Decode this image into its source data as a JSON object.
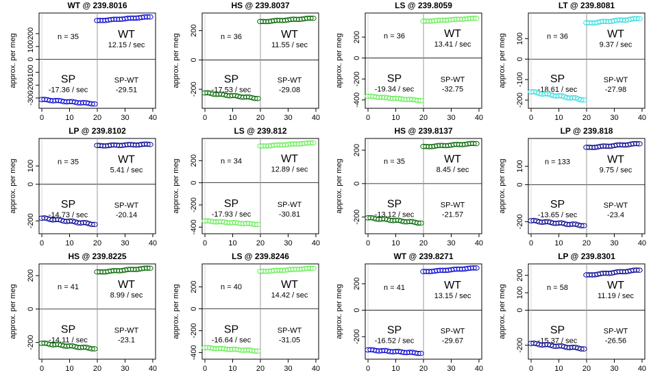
{
  "y_axis_label": "approx. per meg",
  "quadrant_label_wt": "WT",
  "quadrant_label_sp": "SP",
  "quadrant_label_spwt": "SP-WT",
  "colors": {
    "WT": "#0000cc",
    "HS": "#006400",
    "LS": "#66ee55",
    "LT": "#33dddd",
    "LP": "#00008b"
  },
  "chart_data": [
    {
      "type": "scatter",
      "title": "WT @ 239.8016",
      "ref": "WT",
      "color": "#0000cc",
      "n_label": "n = 35",
      "wt_rate": "12.15 / sec",
      "sp_rate": "-17.36 / sec",
      "spwt_diff": "-29.51",
      "ylim": [
        -380,
        360
      ],
      "yticks": [
        -300,
        -200,
        -100,
        0,
        100,
        200
      ],
      "xlim": [
        -1,
        41
      ],
      "xticks": [
        0,
        10,
        20,
        30,
        40
      ],
      "grid": false,
      "sp_start": -312,
      "sp_end": -345,
      "wt_start": 300,
      "wt_end": 330
    },
    {
      "type": "scatter",
      "title": "HS @ 239.8037",
      "ref": "HS",
      "color": "#006400",
      "n_label": "n = 36",
      "wt_rate": "11.55 / sec",
      "sp_rate": "-17.53 / sec",
      "spwt_diff": "-29.08",
      "ylim": [
        -330,
        320
      ],
      "yticks": [
        -200,
        0,
        200
      ],
      "xlim": [
        -1,
        41
      ],
      "xticks": [
        0,
        10,
        20,
        30,
        40
      ],
      "grid": false,
      "sp_start": -225,
      "sp_end": -262,
      "wt_start": 260,
      "wt_end": 285
    },
    {
      "type": "scatter",
      "title": "LS @ 239.8059",
      "ref": "LS",
      "color": "#66ee55",
      "n_label": "n = 36",
      "wt_rate": "13.41 / sec",
      "sp_rate": "-19.34 / sec",
      "spwt_diff": "-32.75",
      "ylim": [
        -480,
        430
      ],
      "yticks": [
        -400,
        -200,
        0,
        200
      ],
      "xlim": [
        -1,
        41
      ],
      "xticks": [
        0,
        10,
        20,
        30,
        40
      ],
      "grid": false,
      "sp_start": -365,
      "sp_end": -405,
      "wt_start": 350,
      "wt_end": 380
    },
    {
      "type": "scatter",
      "title": "LT @ 239.8081",
      "ref": "LT",
      "color": "#33dddd",
      "n_label": "n = 36",
      "wt_rate": "9.37 / sec",
      "sp_rate": "-18.61 / sec",
      "spwt_diff": "-27.98",
      "ylim": [
        -240,
        225
      ],
      "yticks": [
        -200,
        -100,
        0,
        100
      ],
      "xlim": [
        -1,
        41
      ],
      "xticks": [
        0,
        10,
        20,
        30,
        40
      ],
      "grid": false,
      "sp_start": -160,
      "sp_end": -198,
      "wt_start": 175,
      "wt_end": 198
    },
    {
      "type": "scatter",
      "title": "LP @ 239.8102",
      "ref": "LP",
      "color": "#00008b",
      "n_label": "n = 35",
      "wt_rate": "5.41 / sec",
      "sp_rate": "-14.73 / sec",
      "spwt_diff": "-20.14",
      "ylim": [
        -270,
        250
      ],
      "yticks": [
        -200,
        0,
        100
      ],
      "xlim": [
        -1,
        41
      ],
      "xticks": [
        0,
        10,
        20,
        30,
        40
      ],
      "grid": false,
      "sp_start": -185,
      "sp_end": -218,
      "wt_start": 210,
      "wt_end": 218
    },
    {
      "type": "scatter",
      "title": "LS @ 239.812",
      "ref": "LS",
      "color": "#66ee55",
      "n_label": "n = 34",
      "wt_rate": "12.89 / sec",
      "sp_rate": "-17.93 / sec",
      "spwt_diff": "-30.81",
      "ylim": [
        -460,
        400
      ],
      "yticks": [
        -400,
        -200,
        0,
        200
      ],
      "xlim": [
        -1,
        41
      ],
      "xticks": [
        0,
        10,
        20,
        30,
        40
      ],
      "grid": false,
      "sp_start": -345,
      "sp_end": -375,
      "wt_start": 330,
      "wt_end": 360
    },
    {
      "type": "scatter",
      "title": "HS @ 239.8137",
      "ref": "HS",
      "color": "#006400",
      "n_label": "n = 35",
      "wt_rate": "8.45 / sec",
      "sp_rate": "-13.12 / sec",
      "spwt_diff": "-21.57",
      "ylim": [
        -300,
        270
      ],
      "yticks": [
        -200,
        0,
        200
      ],
      "xlim": [
        -1,
        41
      ],
      "xticks": [
        0,
        10,
        20,
        30,
        40
      ],
      "grid": false,
      "sp_start": -205,
      "sp_end": -235,
      "wt_start": 220,
      "wt_end": 240
    },
    {
      "type": "scatter",
      "title": "LP @ 239.818",
      "ref": "LP",
      "color": "#00008b",
      "n_label": "n = 133",
      "wt_rate": "9.75 / sec",
      "sp_rate": "-13.65 / sec",
      "spwt_diff": "-23.4",
      "ylim": [
        -265,
        250
      ],
      "yticks": [
        -200,
        0,
        100
      ],
      "xlim": [
        -1,
        41
      ],
      "xticks": [
        0,
        10,
        20,
        30,
        40
      ],
      "grid": false,
      "sp_start": -195,
      "sp_end": -220,
      "wt_start": 200,
      "wt_end": 222
    },
    {
      "type": "scatter",
      "title": "HS @ 239.8225",
      "ref": "HS",
      "color": "#006400",
      "n_label": "n = 41",
      "wt_rate": "8.99 / sec",
      "sp_rate": "-14.11 / sec",
      "spwt_diff": "-23.1",
      "ylim": [
        -300,
        270
      ],
      "yticks": [
        -200,
        0,
        200
      ],
      "xlim": [
        -1,
        41
      ],
      "xticks": [
        0,
        10,
        20,
        30,
        40
      ],
      "grid": false,
      "sp_start": -205,
      "sp_end": -237,
      "wt_start": 220,
      "wt_end": 245
    },
    {
      "type": "scatter",
      "title": "LS @ 239.8246",
      "ref": "LS",
      "color": "#66ee55",
      "n_label": "n = 40",
      "wt_rate": "14.42 / sec",
      "sp_rate": "-16.64 / sec",
      "spwt_diff": "-31.05",
      "ylim": [
        -460,
        410
      ],
      "yticks": [
        -400,
        -200,
        0,
        200
      ],
      "xlim": [
        -1,
        41
      ],
      "xticks": [
        0,
        10,
        20,
        30,
        40
      ],
      "grid": false,
      "sp_start": -355,
      "sp_end": -385,
      "wt_start": 340,
      "wt_end": 370
    },
    {
      "type": "scatter",
      "title": "WT @ 239.8271",
      "ref": "WT",
      "color": "#0000cc",
      "n_label": "n = 41",
      "wt_rate": "13.15 / sec",
      "sp_rate": "-16.52 / sec",
      "spwt_diff": "-29.67",
      "ylim": [
        -370,
        350
      ],
      "yticks": [
        -200,
        0,
        200
      ],
      "xlim": [
        -1,
        41
      ],
      "xticks": [
        0,
        10,
        20,
        30,
        40
      ],
      "grid": false,
      "sp_start": -300,
      "sp_end": -325,
      "wt_start": 290,
      "wt_end": 320
    },
    {
      "type": "scatter",
      "title": "LP @ 239.8301",
      "ref": "LP",
      "color": "#00008b",
      "n_label": "n = 58",
      "wt_rate": "11.19 / sec",
      "sp_rate": "-15.37 / sec",
      "spwt_diff": "-26.56",
      "ylim": [
        -280,
        265
      ],
      "yticks": [
        -200,
        0,
        100,
        200
      ],
      "xlim": [
        -1,
        41
      ],
      "xticks": [
        0,
        10,
        20,
        30,
        40
      ],
      "grid": false,
      "sp_start": -190,
      "sp_end": -220,
      "wt_start": 200,
      "wt_end": 230
    }
  ]
}
